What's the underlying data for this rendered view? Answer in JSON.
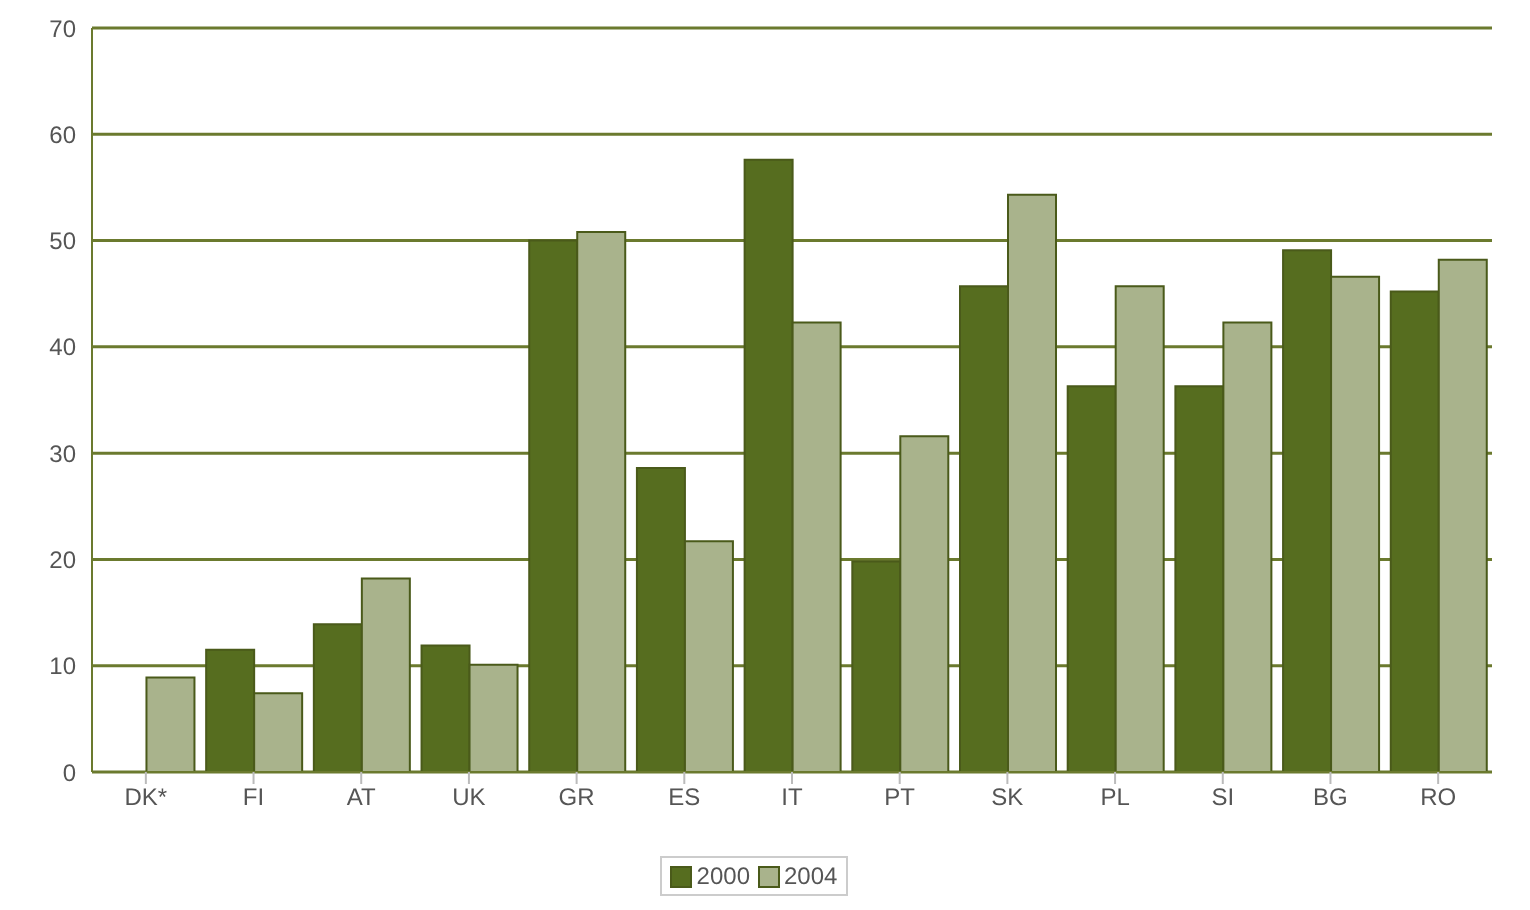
{
  "chart_data": {
    "type": "bar",
    "categories": [
      "DK*",
      "FI",
      "AT",
      "UK",
      "GR",
      "ES",
      "IT",
      "PT",
      "SK",
      "PL",
      "SI",
      "BG",
      "RO"
    ],
    "series": [
      {
        "name": "2000",
        "color": "#566d1f",
        "values": [
          null,
          11.5,
          13.9,
          11.9,
          50,
          28.6,
          57.6,
          19.8,
          45.7,
          36.3,
          36.3,
          49.1,
          45.2
        ]
      },
      {
        "name": "2004",
        "color": "#a9b38c",
        "values": [
          8.9,
          7.4,
          18.2,
          10.1,
          50.8,
          21.7,
          42.3,
          31.6,
          54.3,
          45.7,
          42.3,
          46.6,
          48.2
        ]
      }
    ],
    "ylim": [
      0,
      70
    ],
    "yticks": [
      0,
      10,
      20,
      30,
      40,
      50,
      60,
      70
    ],
    "grid": "y",
    "legend": "bottom"
  }
}
